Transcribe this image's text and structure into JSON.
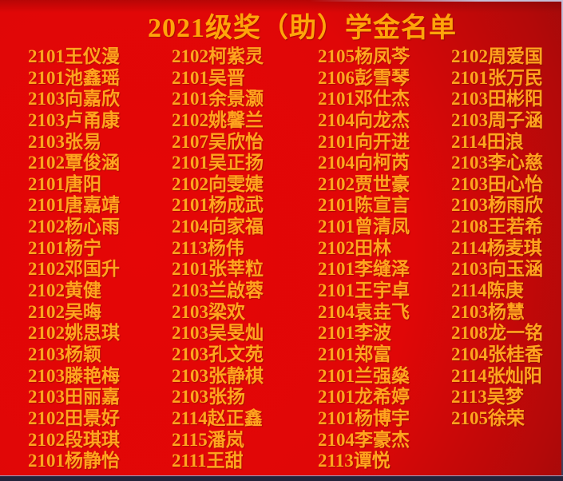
{
  "title": "2021级奖（助）学金名单",
  "colors": {
    "background_bright_red": "#e00707",
    "background_dark_maroon": "#7a0b0b",
    "title_gold": "#ffa40a",
    "name_gold": "#ffa41e",
    "bottom_bar": "#23233b",
    "edge_line": "#c6bfd8"
  },
  "columns": [
    {
      "entries": [
        "2101王仪漫",
        "2101池鑫瑶",
        "2103向嘉欣",
        "2103卢甬康",
        "2103张易",
        "2102覃俊涵",
        "2101唐阳",
        "2101唐嘉靖",
        "2102杨心雨",
        "2101杨宁",
        "2102邓国升",
        "2102黄健",
        "2102吴晦",
        "2102姚思琪",
        "2103杨颖",
        "2103滕艳梅",
        "2103田丽嘉",
        "2102田景好",
        "2102段琪琪",
        "2101杨静怡"
      ]
    },
    {
      "entries": [
        "2102柯紫灵",
        "2101吴晋",
        "2101余景灏",
        "2102姚馨兰",
        "2107吴欣怡",
        "2101吴正扬",
        "2102向雯婕",
        "2101杨成武",
        "2104向家福",
        "2113杨伟",
        "2101张莘粒",
        "2103兰啟蓉",
        "2103梁欢",
        "2103吴旻灿",
        "2103孔文苑",
        "2103张静棋",
        "2103张扬",
        "2114赵正鑫",
        "2115潘岚",
        "2111王甜"
      ]
    },
    {
      "entries": [
        "2105杨凤芩",
        "2106彭雪琴",
        "2101邓仕杰",
        "2104向龙杰",
        "2101向开进",
        "2104向柯芮",
        "2102贾世豪",
        "2101陈宣言",
        "2101曾清凤",
        "2102田林",
        "2101李缝泽",
        "2101王宇卓",
        "2104袁垚飞",
        "2101李波",
        "2101郑富",
        "2101兰强燊",
        "2101龙希婷",
        "2101杨博宇",
        "2104李豪杰",
        "2113谭悦"
      ]
    },
    {
      "entries": [
        "2102周爱国",
        "2101张万民",
        "2103田彬阳",
        "2103周子涵",
        "2114田浪",
        "2103李心慈",
        "2103田心怡",
        "2103杨雨欣",
        "2108王若希",
        "2114杨麦琪",
        "2103向玉涵",
        "2114陈庚",
        "2103杨慧",
        "2108龙一铭",
        "2104张桂香",
        "2114张灿阳",
        "2113吴梦",
        "2105徐荣"
      ]
    }
  ]
}
